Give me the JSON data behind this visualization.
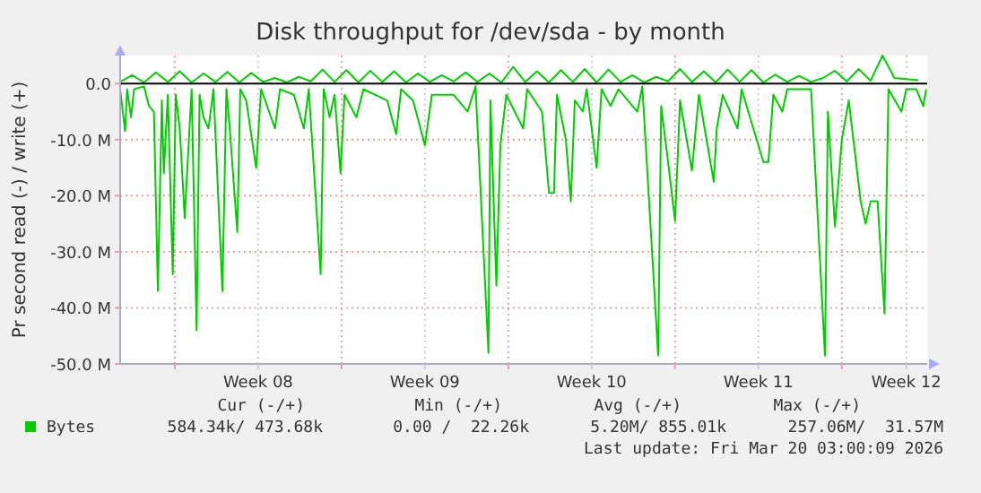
{
  "chart_data": {
    "type": "line",
    "title": "Disk throughput for /dev/sda - by month",
    "ylabel": "Pr second read (-) / write (+)",
    "xlim": [
      "2026-02-13T17:00",
      "2026-03-19T14:00"
    ],
    "xticks": [
      {
        "value": "2026-02-16T00:00",
        "label": null
      },
      {
        "value": "2026-02-19T12:00",
        "label": "Week 08"
      },
      {
        "value": "2026-02-23T00:00",
        "label": null
      },
      {
        "value": "2026-02-26T12:00",
        "label": "Week 09"
      },
      {
        "value": "2026-03-02T00:00",
        "label": null
      },
      {
        "value": "2026-03-05T12:00",
        "label": "Week 10"
      },
      {
        "value": "2026-03-09T00:00",
        "label": null
      },
      {
        "value": "2026-03-12T12:00",
        "label": "Week 11"
      },
      {
        "value": "2026-03-16T00:00",
        "label": null
      },
      {
        "value": "2026-03-18T17:00",
        "label": "Week 12"
      }
    ],
    "ylim": [
      -50,
      5
    ],
    "yticks": [
      {
        "value": -50,
        "label": "-50.0 M"
      },
      {
        "value": -40,
        "label": "-40.0 M"
      },
      {
        "value": -30,
        "label": "-30.0 M"
      },
      {
        "value": -20,
        "label": "-20.0 M"
      },
      {
        "value": -10,
        "label": "-10.0 M"
      },
      {
        "value": 0,
        "label": "0.0"
      }
    ],
    "grid": true,
    "legend": "bottom left",
    "marker": "none",
    "line_style": "solid",
    "ref_lines": [
      {
        "axis": "y",
        "value": 0,
        "color": "#000000"
      }
    ],
    "series": [
      {
        "color": "#00cc00",
        "x": [
          "2026-02-13T17:00",
          "2026-02-13T22:00",
          "2026-02-14T00:00",
          "2026-02-14T04:00",
          "2026-02-14T07:00",
          "2026-02-14T17:00",
          "2026-02-14T22:00",
          "2026-02-15T03:00",
          "2026-02-15T07:00",
          "2026-02-15T11:00",
          "2026-02-15T13:00",
          "2026-02-15T17:00",
          "2026-02-15T22:00",
          "2026-02-16T01:00",
          "2026-02-16T05:00",
          "2026-02-16T10:00",
          "2026-02-16T13:00",
          "2026-02-16T17:00",
          "2026-02-16T22:00",
          "2026-02-17T01:00",
          "2026-02-17T05:00",
          "2026-02-17T10:00",
          "2026-02-17T15:00",
          "2026-02-18T00:00",
          "2026-02-18T04:00",
          "2026-02-18T07:00",
          "2026-02-18T15:00",
          "2026-02-18T18:00",
          "2026-02-19T00:00",
          "2026-02-19T10:00",
          "2026-02-19T15:00",
          "2026-02-20T05:00",
          "2026-02-20T10:00",
          "2026-02-21T00:00",
          "2026-02-21T10:00",
          "2026-02-21T15:00",
          "2026-02-22T03:00",
          "2026-02-22T06:00",
          "2026-02-22T12:00",
          "2026-02-22T17:00",
          "2026-02-22T23:00",
          "2026-02-23T03:00",
          "2026-02-23T15:00",
          "2026-02-23T22:00",
          "2026-02-24T22:00",
          "2026-02-25T07:00",
          "2026-02-25T12:00",
          "2026-02-26T00:00",
          "2026-02-26T12:00",
          "2026-02-26T19:00",
          "2026-02-27T17:00",
          "2026-02-28T07:00",
          "2026-02-28T15:00",
          "2026-03-01T04:00",
          "2026-03-01T06:00",
          "2026-03-01T12:00",
          "2026-03-01T16:00",
          "2026-03-01T22:00",
          "2026-03-02T15:00",
          "2026-03-02T19:00",
          "2026-03-03T10:00",
          "2026-03-03T17:00",
          "2026-03-03T22:00",
          "2026-03-04T01:00",
          "2026-03-04T10:00",
          "2026-03-04T15:00",
          "2026-03-04T19:00",
          "2026-03-05T03:00",
          "2026-03-05T07:00",
          "2026-03-05T17:00",
          "2026-03-05T22:00",
          "2026-03-06T07:00",
          "2026-03-06T15:00",
          "2026-03-07T10:00",
          "2026-03-07T15:00",
          "2026-03-08T07:00",
          "2026-03-08T10:00",
          "2026-03-08T17:00",
          "2026-03-09T00:00",
          "2026-03-09T05:00",
          "2026-03-09T17:00",
          "2026-03-10T00:00",
          "2026-03-10T15:00",
          "2026-03-10T18:00",
          "2026-03-11T00:00",
          "2026-03-11T15:00",
          "2026-03-11T19:00",
          "2026-03-12T17:00",
          "2026-03-12T22:00",
          "2026-03-13T03:00",
          "2026-03-13T12:00",
          "2026-03-13T17:00",
          "2026-03-14T17:00",
          "2026-03-15T07:00",
          "2026-03-15T10:00",
          "2026-03-15T17:00",
          "2026-03-16T00:00",
          "2026-03-16T07:00",
          "2026-03-16T19:00",
          "2026-03-17T00:00",
          "2026-03-17T05:00",
          "2026-03-17T12:00",
          "2026-03-17T19:00",
          "2026-03-17T23:00",
          "2026-03-18T12:00",
          "2026-03-18T17:00",
          "2026-03-19T03:00",
          "2026-03-19T10:00",
          "2026-03-19T13:00"
        ],
        "values": [
          -1,
          -8.5,
          -1,
          -6,
          -1,
          -0.5,
          -4,
          -5,
          -37,
          -3,
          -16,
          -2,
          -34,
          -2,
          -8,
          -24,
          -14,
          -1,
          -44,
          -2,
          -6,
          -8,
          -1,
          -37,
          -1,
          -7,
          -26.5,
          -1,
          -3,
          -15,
          -1,
          -8,
          -1,
          -2,
          -8,
          -1,
          -34,
          -1,
          -6,
          -2,
          -16,
          -2,
          -6,
          -1,
          -3,
          -9,
          -1,
          -3,
          -11,
          -2,
          -2,
          -5,
          -0.5,
          -48,
          -3,
          -36,
          -11,
          -2,
          -8,
          -1,
          -5,
          -19.5,
          -19.5,
          -2,
          -10,
          -21,
          -3,
          -5,
          -1,
          -15,
          -1,
          -4,
          -1,
          -5,
          -0.5,
          -48.5,
          -4,
          -14,
          -24.5,
          -3,
          -15.5,
          -2,
          -17.5,
          -8,
          -2,
          -8,
          -1,
          -14,
          -14,
          -2,
          -5,
          -1,
          -1,
          -48.5,
          -5,
          -25.5,
          -10,
          -3,
          -21,
          -25,
          -21,
          -21,
          -41,
          -1,
          -5,
          -1,
          -1,
          -4,
          -1
        ]
      },
      {
        "name": "Bytes",
        "color": "#00cc00",
        "x": [
          "2026-02-13T17:00",
          "2026-02-14T05:00",
          "2026-02-14T17:00",
          "2026-02-15T05:00",
          "2026-02-15T17:00",
          "2026-02-16T05:00",
          "2026-02-16T17:00",
          "2026-02-17T05:00",
          "2026-02-17T17:00",
          "2026-02-18T05:00",
          "2026-02-18T17:00",
          "2026-02-19T05:00",
          "2026-02-19T17:00",
          "2026-02-20T05:00",
          "2026-02-20T17:00",
          "2026-02-21T05:00",
          "2026-02-21T17:00",
          "2026-02-22T05:00",
          "2026-02-22T17:00",
          "2026-02-23T05:00",
          "2026-02-23T17:00",
          "2026-02-24T05:00",
          "2026-02-24T17:00",
          "2026-02-25T05:00",
          "2026-02-25T17:00",
          "2026-02-26T05:00",
          "2026-02-26T17:00",
          "2026-02-27T05:00",
          "2026-02-27T17:00",
          "2026-02-28T05:00",
          "2026-02-28T17:00",
          "2026-03-01T05:00",
          "2026-03-01T17:00",
          "2026-03-02T05:00",
          "2026-03-02T17:00",
          "2026-03-03T05:00",
          "2026-03-03T17:00",
          "2026-03-04T05:00",
          "2026-03-04T17:00",
          "2026-03-05T05:00",
          "2026-03-05T17:00",
          "2026-03-06T05:00",
          "2026-03-06T17:00",
          "2026-03-07T05:00",
          "2026-03-07T17:00",
          "2026-03-08T05:00",
          "2026-03-08T17:00",
          "2026-03-09T05:00",
          "2026-03-09T17:00",
          "2026-03-10T05:00",
          "2026-03-10T17:00",
          "2026-03-11T05:00",
          "2026-03-11T17:00",
          "2026-03-12T05:00",
          "2026-03-12T17:00",
          "2026-03-13T05:00",
          "2026-03-13T17:00",
          "2026-03-14T05:00",
          "2026-03-14T17:00",
          "2026-03-15T05:00",
          "2026-03-15T17:00",
          "2026-03-16T05:00",
          "2026-03-16T17:00",
          "2026-03-17T05:00",
          "2026-03-17T17:00",
          "2026-03-18T05:00",
          "2026-03-18T17:00",
          "2026-03-19T05:00"
        ],
        "values": [
          0.3,
          1.5,
          0.2,
          2.0,
          0.3,
          2.2,
          0.2,
          1.8,
          0.3,
          2.1,
          0.2,
          1.9,
          0.3,
          1.0,
          0.2,
          1.2,
          0.4,
          2.5,
          0.3,
          2.4,
          0.2,
          2.3,
          0.3,
          2.2,
          0.2,
          1.8,
          0.3,
          1.5,
          0.4,
          2.0,
          0.3,
          1.8,
          0.2,
          3.0,
          0.3,
          2.2,
          0.2,
          2.4,
          0.3,
          2.6,
          0.2,
          2.5,
          0.3,
          1.5,
          0.2,
          1.2,
          0.4,
          2.6,
          0.3,
          2.2,
          0.2,
          2.5,
          0.3,
          2.4,
          0.2,
          1.6,
          0.3,
          1.4,
          0.3,
          1.0,
          2.3,
          0.4,
          2.6,
          0.5,
          5.0,
          1.0,
          0.8,
          0.6
        ]
      }
    ],
    "annotations": [
      "Cur (-/+)",
      "Min (-/+)",
      "Avg (-/+)",
      "Max (-/+)",
      "584.34k/ 473.68k",
      "0.00 /  22.26k",
      "5.20M/ 855.01k",
      "257.06M/  31.57M",
      "Last update: Fri Mar 20 03:00:09 2026"
    ]
  }
}
